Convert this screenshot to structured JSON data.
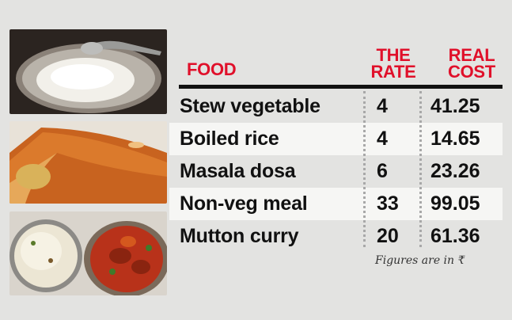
{
  "header": {
    "food": "FOOD",
    "rate": "THE\nRATE",
    "cost": "REAL\nCOST"
  },
  "rows": [
    {
      "food": "Stew vegetable",
      "rate": "4",
      "cost": "41.25"
    },
    {
      "food": "Boiled rice",
      "rate": "4",
      "cost": "14.65"
    },
    {
      "food": "Masala dosa",
      "rate": "6",
      "cost": "23.26"
    },
    {
      "food": "Non-veg meal",
      "rate": "33",
      "cost": "99.05"
    },
    {
      "food": "Mutton curry",
      "rate": "20",
      "cost": "61.36"
    }
  ],
  "note": "Figures are in ₹",
  "colors": {
    "header": "#e0102a",
    "background": "#e3e3e1",
    "highlight_row": "#f6f6f4"
  }
}
